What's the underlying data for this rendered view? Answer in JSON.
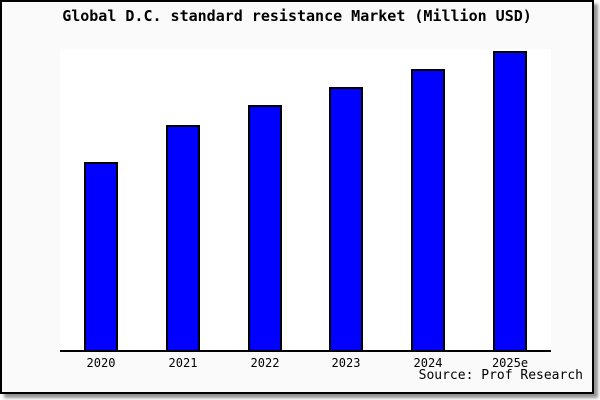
{
  "title": "Global D.C. standard resistance Market (Million USD)",
  "source_note": "Source: Prof Research",
  "colors": {
    "figure_background": "#FAFAFA",
    "plot_background": "#FFFFFF",
    "bar_fill": "#0000FF",
    "bar_border": "#000000",
    "axis_line": "#000000",
    "frame_border": "#000000",
    "text": "#000000"
  },
  "chart_data": {
    "type": "bar",
    "title": "Global D.C. standard resistance Market (Million USD)",
    "categories": [
      "2020",
      "2021",
      "2022",
      "2023",
      "2024",
      "2025e"
    ],
    "series": [
      {
        "name": "Market size (relative height, % of tallest bar; no numeric y-axis shown)",
        "values": [
          62.9,
          75.3,
          81.9,
          88.0,
          94.0,
          100.0
        ]
      }
    ],
    "xlabel": "",
    "ylabel": "",
    "y_axis_tick_labels_visible": false,
    "gridlines": false,
    "legend_visible": false,
    "annotation": "Source: Prof Research"
  }
}
